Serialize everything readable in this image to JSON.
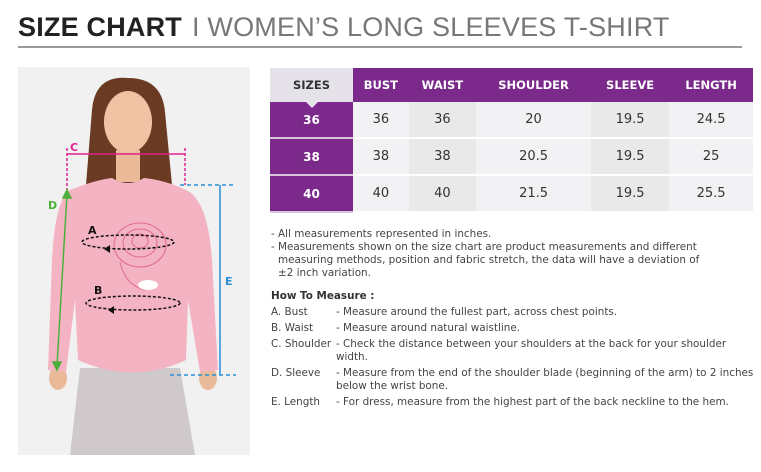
{
  "title": {
    "bold": "SIZE CHART",
    "rest": "I WOMEN’S LONG SLEEVES T-SHIRT"
  },
  "colors": {
    "accent": "#7b2a8c",
    "shoulder_line": "#e0218a",
    "sleeve_line": "#4caf3a",
    "length_line": "#2b8fd6"
  },
  "figure_labels": {
    "a": "A",
    "b": "B",
    "c": "C",
    "d": "D",
    "e": "E"
  },
  "table": {
    "headers": [
      "SIZES",
      "BUST",
      "WAIST",
      "SHOULDER",
      "SLEEVE",
      "LENGTH"
    ],
    "rows": [
      [
        "36",
        "36",
        "36",
        "20",
        "19.5",
        "24.5"
      ],
      [
        "38",
        "38",
        "38",
        "20.5",
        "19.5",
        "25"
      ],
      [
        "40",
        "40",
        "40",
        "21.5",
        "19.5",
        "25.5"
      ]
    ]
  },
  "notes": [
    "- All measurements represented in inches.",
    "- Measurements shown on the size chart are product measurements and different",
    "measuring methods, position and fabric stretch, the data will have a deviation of",
    "±2 inch variation."
  ],
  "how_to_measure": {
    "heading": "How To Measure :",
    "items": [
      {
        "key": "A. Bust",
        "text": "- Measure around the fullest part, across chest points."
      },
      {
        "key": "B. Waist",
        "text": "- Measure around natural waistline."
      },
      {
        "key": "C. Shoulder",
        "text": "- Check the distance between your shoulders at the back for your shoulder width."
      },
      {
        "key": "D. Sleeve",
        "text": "- Measure from the end of the shoulder blade (beginning of the arm) to 2 inches below the wrist bone."
      },
      {
        "key": "E. Length",
        "text": "- For dress, measure from the highest part of the back neckline to the hem."
      }
    ]
  }
}
